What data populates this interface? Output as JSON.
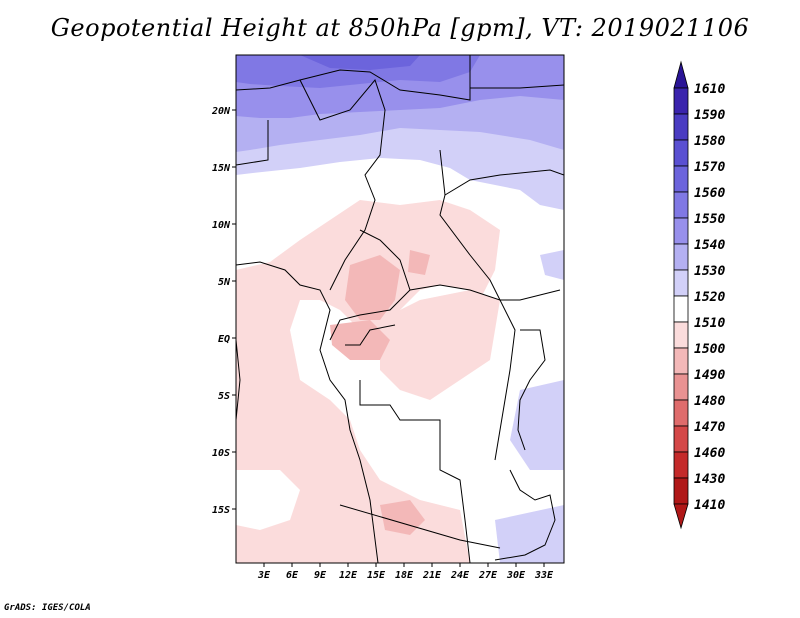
{
  "title": "Geopotential Height at 850hPa [gpm], VT: 2019021106",
  "credit": "GrADS: IGES/COLA",
  "map": {
    "lat_ticks": [
      "20N",
      "15N",
      "10N",
      "5N",
      "EQ",
      "5S",
      "10S",
      "15S"
    ],
    "lon_ticks": [
      "3E",
      "6E",
      "9E",
      "12E",
      "15E",
      "18E",
      "21E",
      "24E",
      "27E",
      "30E",
      "33E"
    ]
  },
  "colorbar": {
    "levels": [
      "1610",
      "1590",
      "1580",
      "1570",
      "1560",
      "1550",
      "1540",
      "1530",
      "1520",
      "1510",
      "1500",
      "1490",
      "1480",
      "1470",
      "1460",
      "1430",
      "1410"
    ],
    "colors": [
      "#2a1496",
      "#3a24ad",
      "#4a3cc2",
      "#5a50d2",
      "#6c64dc",
      "#8078e4",
      "#9890ec",
      "#b4b0f2",
      "#d2d0f8",
      "#ffffff",
      "#fbdcdc",
      "#f3b8b8",
      "#e99292",
      "#df6c6c",
      "#d44848",
      "#c42a2a",
      "#b01818"
    ]
  }
}
